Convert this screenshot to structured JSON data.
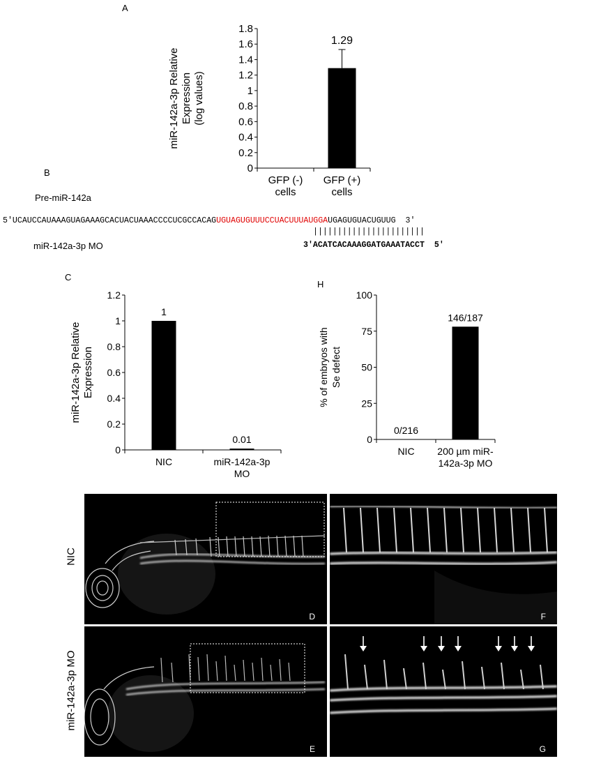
{
  "panels": {
    "A": "A",
    "B": "B",
    "C": "C",
    "H": "H",
    "D": "D",
    "E": "E",
    "F": "F",
    "G": "G"
  },
  "sequence": {
    "pre_label": "Pre-miR-142a",
    "pre_prefix": "5′UCAUCCAUAAAGUAGAAAGCACUACUAAACCCCUCGCCACAG",
    "pre_highlight": "UGUAGUGUUUCCUACUUUAUGGA",
    "pre_suffix": "UGAGUGUACUGUUG",
    "pre_end": "3′",
    "pairing": "|||||||||||||||||||||||",
    "mo_label": "miR-142a-3p MO",
    "mo_sequence": "3′ACATCACAAAGGATGAAATACCT",
    "mo_end": "5′",
    "highlight_color": "#e00000"
  },
  "image_labels": {
    "row_top": "NIC",
    "row_bottom": "miR-142a-3p MO"
  },
  "chart_data": [
    {
      "panel": "A",
      "type": "bar",
      "categories": [
        "GFP (-) cells",
        "GFP (+) cells"
      ],
      "category_lines": [
        [
          "GFP (-)",
          "cells"
        ],
        [
          "GFP (+)",
          "cells"
        ]
      ],
      "values": [
        0,
        1.29
      ],
      "errors": [
        0,
        0.24
      ],
      "data_labels": [
        "",
        "1.29"
      ],
      "ylabel_lines": [
        "miR-142a-3p Relative",
        "Expression",
        "(log values)"
      ],
      "ylim": [
        0,
        1.8
      ],
      "yticks": [
        0,
        0.2,
        0.4,
        0.6,
        0.8,
        1,
        1.2,
        1.4,
        1.6,
        1.8
      ],
      "ytick_labels": [
        "0",
        "0.2",
        "0.4",
        "0.6",
        "0.8",
        "1",
        "1.2",
        "1.4",
        "1.6",
        "1.8"
      ],
      "grid": false,
      "bar_color": "#000000"
    },
    {
      "panel": "C",
      "type": "bar",
      "categories": [
        "NIC",
        "miR-142a-3p MO"
      ],
      "category_lines": [
        [
          "NIC"
        ],
        [
          "miR-142a-3p",
          "MO"
        ]
      ],
      "values": [
        1,
        0.01
      ],
      "errors": [
        0,
        0
      ],
      "data_labels": [
        "1",
        "0.01"
      ],
      "ylabel_lines": [
        "miR-142a-3p Relative",
        "Expression"
      ],
      "ylim": [
        0,
        1.2
      ],
      "yticks": [
        0,
        0.2,
        0.4,
        0.6,
        0.8,
        1,
        1.2
      ],
      "ytick_labels": [
        "0",
        "0.2",
        "0.4",
        "0.6",
        "0.8",
        "1",
        "1.2"
      ],
      "grid": false,
      "bar_color": "#000000"
    },
    {
      "panel": "H",
      "type": "bar",
      "categories": [
        "NIC",
        "200 µm miR-142a-3p MO"
      ],
      "category_lines": [
        [
          "NIC"
        ],
        [
          "200 µm miR-",
          "142a-3p MO"
        ]
      ],
      "values": [
        0,
        78.1
      ],
      "errors": [
        0,
        0
      ],
      "data_labels": [
        "0/216",
        "146/187"
      ],
      "ylabel_lines": [
        "% of embryos with",
        "Se defect"
      ],
      "ylim": [
        0,
        100
      ],
      "yticks": [
        0,
        25,
        50,
        75,
        100
      ],
      "ytick_labels": [
        "0",
        "25",
        "50",
        "75",
        "100"
      ],
      "grid": false,
      "bar_color": "#000000"
    }
  ]
}
